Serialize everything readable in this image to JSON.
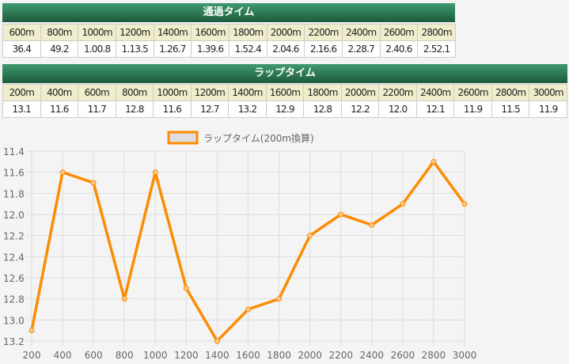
{
  "passing": {
    "title": "通過タイム",
    "headers": [
      "600m",
      "800m",
      "1000m",
      "1200m",
      "1400m",
      "1600m",
      "1800m",
      "2000m",
      "2200m",
      "2400m",
      "2600m",
      "2800m"
    ],
    "values": [
      "36.4",
      "49.2",
      "1.00.8",
      "1.13.5",
      "1.26.7",
      "1.39.6",
      "1.52.4",
      "2.04.6",
      "2.16.6",
      "2.28.7",
      "2.40.6",
      "2.52.1"
    ]
  },
  "lap": {
    "title": "ラップタイム",
    "headers": [
      "200m",
      "400m",
      "600m",
      "800m",
      "1000m",
      "1200m",
      "1400m",
      "1600m",
      "1800m",
      "2000m",
      "2200m",
      "2400m",
      "2600m",
      "2800m",
      "3000m"
    ],
    "values": [
      "13.1",
      "11.6",
      "11.7",
      "12.8",
      "11.6",
      "12.7",
      "13.2",
      "12.9",
      "12.8",
      "12.2",
      "12.0",
      "12.1",
      "11.9",
      "11.5",
      "11.9"
    ]
  },
  "chart_data": {
    "type": "line",
    "x": [
      200,
      400,
      600,
      800,
      1000,
      1200,
      1400,
      1600,
      1800,
      2000,
      2200,
      2400,
      2600,
      2800,
      3000
    ],
    "series": [
      {
        "name": "ラップタイム(200m換算)",
        "values": [
          13.1,
          11.6,
          11.7,
          12.8,
          11.6,
          12.7,
          13.2,
          12.9,
          12.8,
          12.2,
          12.0,
          12.1,
          11.9,
          11.5,
          11.9
        ],
        "color": "#ff8c00"
      }
    ],
    "ylim": [
      11.4,
      13.2
    ],
    "y_reversed": true,
    "yticks": [
      "11.4",
      "11.6",
      "11.8",
      "12.0",
      "12.2",
      "12.4",
      "12.6",
      "12.8",
      "13.0",
      "13.2"
    ],
    "xticks": [
      "200",
      "400",
      "600",
      "800",
      "1000",
      "1200",
      "1400",
      "1600",
      "1800",
      "2000",
      "2200",
      "2400",
      "2600",
      "2800",
      "3000"
    ],
    "grid": true,
    "legend": "top"
  }
}
